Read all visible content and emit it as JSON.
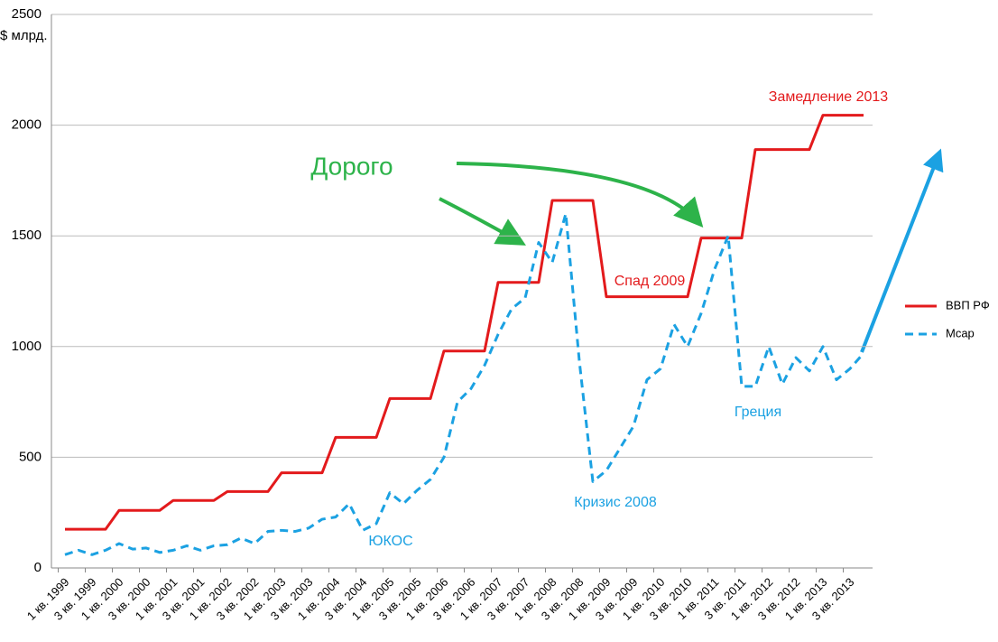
{
  "chart_data": {
    "type": "line",
    "y_label": "$ млрд.",
    "categories": [
      "1 кв. 1999",
      null,
      "3 кв. 1999",
      null,
      "1 кв. 2000",
      null,
      "3 кв. 2000",
      null,
      "1 кв. 2001",
      null,
      "3 кв. 2001",
      null,
      "1 кв. 2002",
      null,
      "3 кв. 2002",
      null,
      "1 кв. 2003",
      null,
      "3 кв. 2003",
      null,
      "1 кв. 2004",
      null,
      "3 кв. 2004",
      null,
      "1 кв. 2005",
      null,
      "3 кв. 2005",
      null,
      "1 кв. 2006",
      null,
      "3 кв. 2006",
      null,
      "1 кв. 2007",
      null,
      "3 кв. 2007",
      null,
      "1 кв. 2008",
      null,
      "3 кв. 2008",
      null,
      "1 кв. 2009",
      null,
      "3 кв. 2009",
      null,
      "1 кв. 2010",
      null,
      "3 кв. 2010",
      null,
      "1 кв. 2011",
      null,
      "3 кв. 2011",
      null,
      "1 кв. 2012",
      null,
      "3 кв. 2012",
      null,
      "1 кв. 2013",
      null,
      "3 кв. 2013",
      null
    ],
    "series": [
      {
        "name": "ВВП РФ",
        "color": "#e31a1c",
        "dashed": false,
        "values": [
          175,
          175,
          175,
          175,
          260,
          260,
          260,
          260,
          305,
          305,
          305,
          305,
          345,
          345,
          345,
          345,
          430,
          430,
          430,
          430,
          590,
          590,
          590,
          590,
          765,
          765,
          765,
          765,
          980,
          980,
          980,
          980,
          1290,
          1290,
          1290,
          1290,
          1660,
          1660,
          1660,
          1660,
          1225,
          1225,
          1225,
          1225,
          1225,
          1225,
          1225,
          1490,
          1490,
          1490,
          1490,
          1890,
          1890,
          1890,
          1890,
          1890,
          2045,
          2045,
          2045,
          2045
        ]
      },
      {
        "name": "Mcap",
        "color": "#1ba1e2",
        "dashed": true,
        "values": [
          60,
          80,
          60,
          80,
          110,
          85,
          90,
          70,
          80,
          100,
          80,
          100,
          105,
          135,
          110,
          165,
          170,
          165,
          180,
          220,
          230,
          290,
          170,
          200,
          340,
          290,
          350,
          400,
          500,
          750,
          810,
          915,
          1055,
          1170,
          1220,
          1470,
          1380,
          1600,
          935,
          390,
          440,
          540,
          640,
          850,
          900,
          1100,
          1000,
          1150,
          1350,
          1500,
          820,
          820,
          1000,
          830,
          950,
          890,
          1000,
          850,
          900,
          970
        ]
      }
    ],
    "annotations": [
      {
        "text": "Замедление 2013",
        "color": "#e31a1c"
      },
      {
        "text": "Дорого",
        "color": "#2db34a"
      },
      {
        "text": "Спад 2009",
        "color": "#e31a1c"
      },
      {
        "text": "Кризис 2008",
        "color": "#1ba1e2"
      },
      {
        "text": "Греция",
        "color": "#1ba1e2"
      },
      {
        "text": "ЮКОС",
        "color": "#1ba1e2"
      }
    ],
    "ylim": [
      0,
      2500
    ],
    "yticks": [
      0,
      500,
      1000,
      1500,
      2000,
      2500
    ],
    "grid": true,
    "legend": "right"
  }
}
